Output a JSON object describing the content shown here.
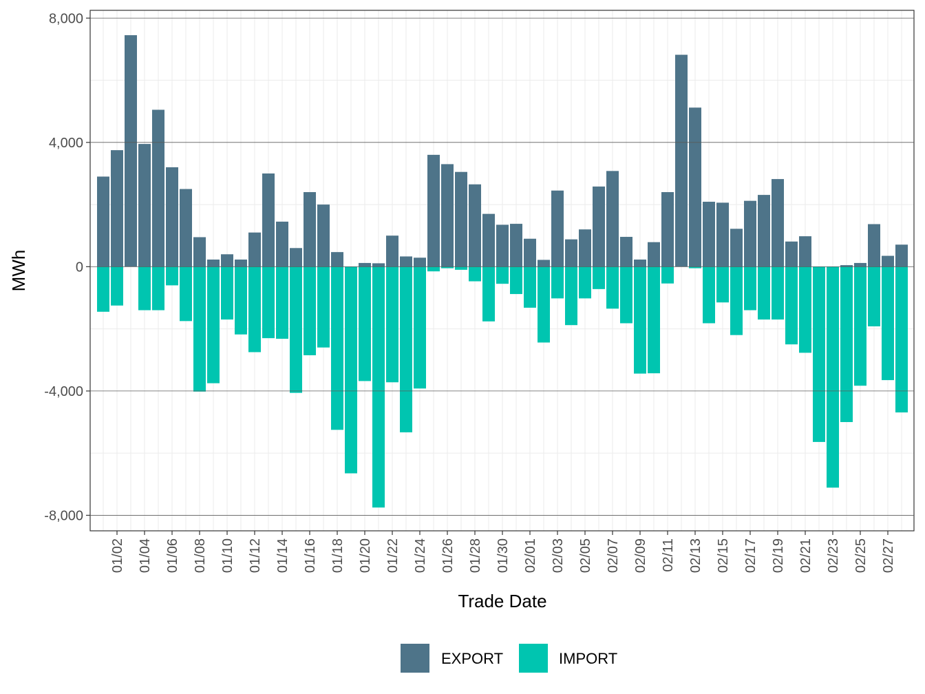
{
  "chart_data": {
    "type": "bar",
    "title": "",
    "xlabel": "Trade Date",
    "ylabel": "MWh",
    "ylim": [
      -8500,
      8250
    ],
    "y_ticks": [
      -8000,
      -4000,
      0,
      4000,
      8000
    ],
    "y_tick_labels": [
      "-8,000",
      "-4,000",
      "0",
      "4,000",
      "8,000"
    ],
    "grid": true,
    "legend_position": "bottom",
    "colors": {
      "EXPORT": "#4e7489",
      "IMPORT": "#00c5b0"
    },
    "categories": [
      "01/01",
      "01/02",
      "01/03",
      "01/04",
      "01/05",
      "01/06",
      "01/07",
      "01/08",
      "01/09",
      "01/10",
      "01/11",
      "01/12",
      "01/13",
      "01/14",
      "01/15",
      "01/16",
      "01/17",
      "01/18",
      "01/19",
      "01/20",
      "01/21",
      "01/22",
      "01/23",
      "01/24",
      "01/25",
      "01/26",
      "01/27",
      "01/28",
      "01/29",
      "01/30",
      "01/31",
      "02/01",
      "02/02",
      "02/03",
      "02/04",
      "02/05",
      "02/06",
      "02/07",
      "02/08",
      "02/09",
      "02/10",
      "02/11",
      "02/12",
      "02/13",
      "02/14",
      "02/15",
      "02/16",
      "02/17",
      "02/18",
      "02/19",
      "02/20",
      "02/21",
      "02/22",
      "02/23",
      "02/24",
      "02/25",
      "02/26",
      "02/27",
      "02/28"
    ],
    "tick_labels": [
      "01/02",
      "01/04",
      "01/06",
      "01/08",
      "01/10",
      "01/12",
      "01/14",
      "01/16",
      "01/18",
      "01/20",
      "01/22",
      "01/24",
      "01/26",
      "01/28",
      "01/30",
      "02/01",
      "02/03",
      "02/05",
      "02/07",
      "02/09",
      "02/11",
      "02/13",
      "02/15",
      "02/17",
      "02/19",
      "02/21",
      "02/23",
      "02/25",
      "02/27"
    ],
    "series": [
      {
        "name": "EXPORT",
        "values": [
          2900,
          3750,
          7450,
          3950,
          5050,
          3200,
          2500,
          950,
          230,
          400,
          230,
          1100,
          3000,
          1450,
          600,
          2400,
          2000,
          470,
          0,
          120,
          110,
          1000,
          330,
          290,
          3600,
          3300,
          3050,
          2650,
          1700,
          1350,
          1380,
          900,
          220,
          2450,
          880,
          1200,
          2580,
          3080,
          960,
          230,
          790,
          2400,
          6820,
          5120,
          2090,
          2060,
          1220,
          2120,
          2310,
          2820,
          810,
          980,
          0,
          0,
          50,
          120,
          1370,
          350,
          710
        ]
      },
      {
        "name": "IMPORT",
        "values": [
          -1450,
          -1250,
          0,
          -1400,
          -1400,
          -600,
          -1750,
          -4020,
          -3750,
          -1700,
          -2180,
          -2750,
          -2300,
          -2320,
          -4060,
          -2850,
          -2600,
          -5250,
          -6650,
          -3680,
          -7750,
          -3720,
          -5330,
          -3920,
          -150,
          -50,
          -100,
          -470,
          -1760,
          -550,
          -880,
          -1320,
          -2440,
          -1020,
          -1880,
          -1020,
          -720,
          -1350,
          -1820,
          -3440,
          -3430,
          -540,
          0,
          -50,
          -1820,
          -1150,
          -2200,
          -1400,
          -1700,
          -1700,
          -2500,
          -2770,
          -5640,
          -7110,
          -5000,
          -3830,
          -1920,
          -3650,
          -4690
        ]
      }
    ]
  }
}
